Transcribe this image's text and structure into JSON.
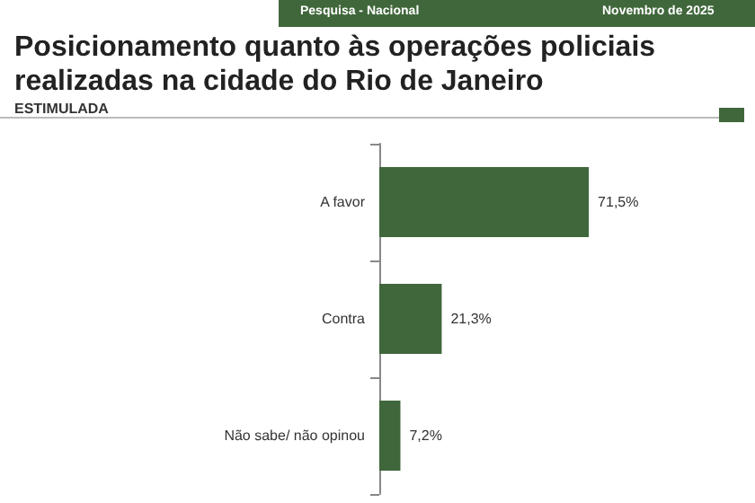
{
  "chart_data": {
    "type": "bar",
    "orientation": "horizontal",
    "title": "Posicionamento quanto às operações policiais realizadas na cidade do Rio de Janeiro",
    "subtitle": "ESTIMULADA",
    "annotations": [
      "Pesquisa - Nacional",
      "Novembro de 2025"
    ],
    "categories": [
      "A favor",
      "Contra",
      "Não sabe/ não opinou"
    ],
    "values": [
      71.5,
      21.3,
      7.2
    ],
    "value_labels": [
      "71,5%",
      "21,3%",
      "7,2%"
    ],
    "color": "#40673b"
  }
}
